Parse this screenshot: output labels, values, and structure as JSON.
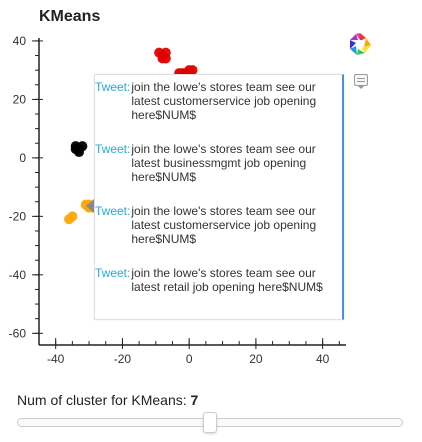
{
  "title": "KMeans",
  "chart_data": {
    "type": "scatter",
    "title": "KMeans",
    "xlim": [
      -45,
      47
    ],
    "ylim": [
      -64,
      41
    ],
    "x_ticks": [
      -40,
      -20,
      0,
      20,
      40
    ],
    "y_ticks": [
      40,
      20,
      0,
      -20,
      -40,
      -60
    ],
    "x_tick_labels": [
      "-40",
      "-20",
      "0",
      "20",
      "40"
    ],
    "y_tick_labels": [
      "40",
      "20",
      "0",
      "-20",
      "-40",
      "-60"
    ],
    "xlabel": "",
    "ylabel": "",
    "series": [
      {
        "color": "#e00000",
        "points": [
          [
            -8,
            35
          ],
          [
            -7,
            34
          ],
          [
            -9,
            36
          ],
          [
            -8,
            34
          ],
          [
            -7,
            36
          ],
          [
            -2,
            29
          ],
          [
            0,
            30
          ],
          [
            -1,
            29
          ],
          [
            1,
            30
          ],
          [
            -3,
            29
          ]
        ]
      },
      {
        "color": "#000000",
        "points": [
          [
            -33,
            3
          ],
          [
            -34,
            3
          ],
          [
            -32,
            4
          ],
          [
            -33,
            2
          ],
          [
            -34,
            4
          ]
        ]
      },
      {
        "color": "#ffa500",
        "points": [
          [
            -36,
            -21
          ],
          [
            -35,
            -20
          ],
          [
            -30,
            -16
          ],
          [
            -29,
            -17
          ],
          [
            -28,
            -16
          ],
          [
            -30,
            -17
          ],
          [
            -31,
            -16
          ]
        ]
      },
      {
        "color": "#555555",
        "points": [
          [
            -27,
            -18
          ],
          [
            -26,
            -19
          ]
        ]
      }
    ]
  },
  "tooltip": {
    "items": [
      {
        "key": "Tweet:",
        "value": "join the lowe's stores team see our latest customerservice job opening here$NUM$"
      },
      {
        "key": "Tweet:",
        "value": "join the lowe's stores team see our latest businessmgmt job opening here$NUM$"
      },
      {
        "key": "Tweet:",
        "value": "join the lowe's stores team see our latest customerservice job opening here$NUM$"
      },
      {
        "key": "Tweet:",
        "value": "join the lowe's stores team see our latest retail job opening here$NUM$"
      }
    ]
  },
  "toolbar": {
    "logo_icon": "bokeh-logo-icon",
    "hover_icon": "hover-tool-icon"
  },
  "slider": {
    "label": "Num of cluster for KMeans: ",
    "value": "7",
    "position_fraction": 0.5
  }
}
